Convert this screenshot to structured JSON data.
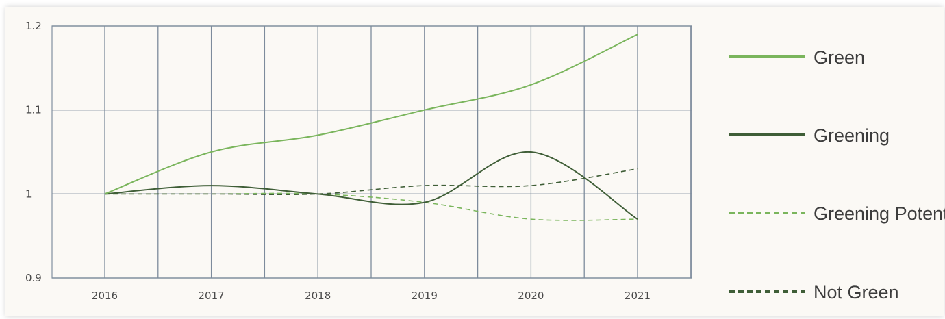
{
  "chart_data": {
    "type": "line",
    "title": "",
    "xlabel": "",
    "ylabel": "",
    "x": [
      "2016",
      "2017",
      "2018",
      "2019",
      "2020",
      "2021"
    ],
    "ylim": [
      0.9,
      1.2
    ],
    "yticks": [
      "0.9",
      "1",
      "1.1",
      "1.2"
    ],
    "grid": true,
    "legend_position": "right",
    "series": [
      {
        "name": "Green",
        "color": "#7ab55c",
        "style": "solid",
        "values": [
          1.0,
          1.05,
          1.07,
          1.1,
          1.13,
          1.19
        ]
      },
      {
        "name": "Greening",
        "color": "#3f5e37",
        "style": "solid",
        "values": [
          1.0,
          1.01,
          1.0,
          0.99,
          1.05,
          0.97
        ]
      },
      {
        "name": "Greening Potential",
        "color": "#7ab55c",
        "style": "dashed",
        "values": [
          1.0,
          1.0,
          1.0,
          0.99,
          0.97,
          0.97
        ]
      },
      {
        "name": "Not Green",
        "color": "#3f5e37",
        "style": "dashed",
        "values": [
          1.0,
          1.0,
          1.0,
          1.01,
          1.01,
          1.03
        ]
      }
    ]
  }
}
